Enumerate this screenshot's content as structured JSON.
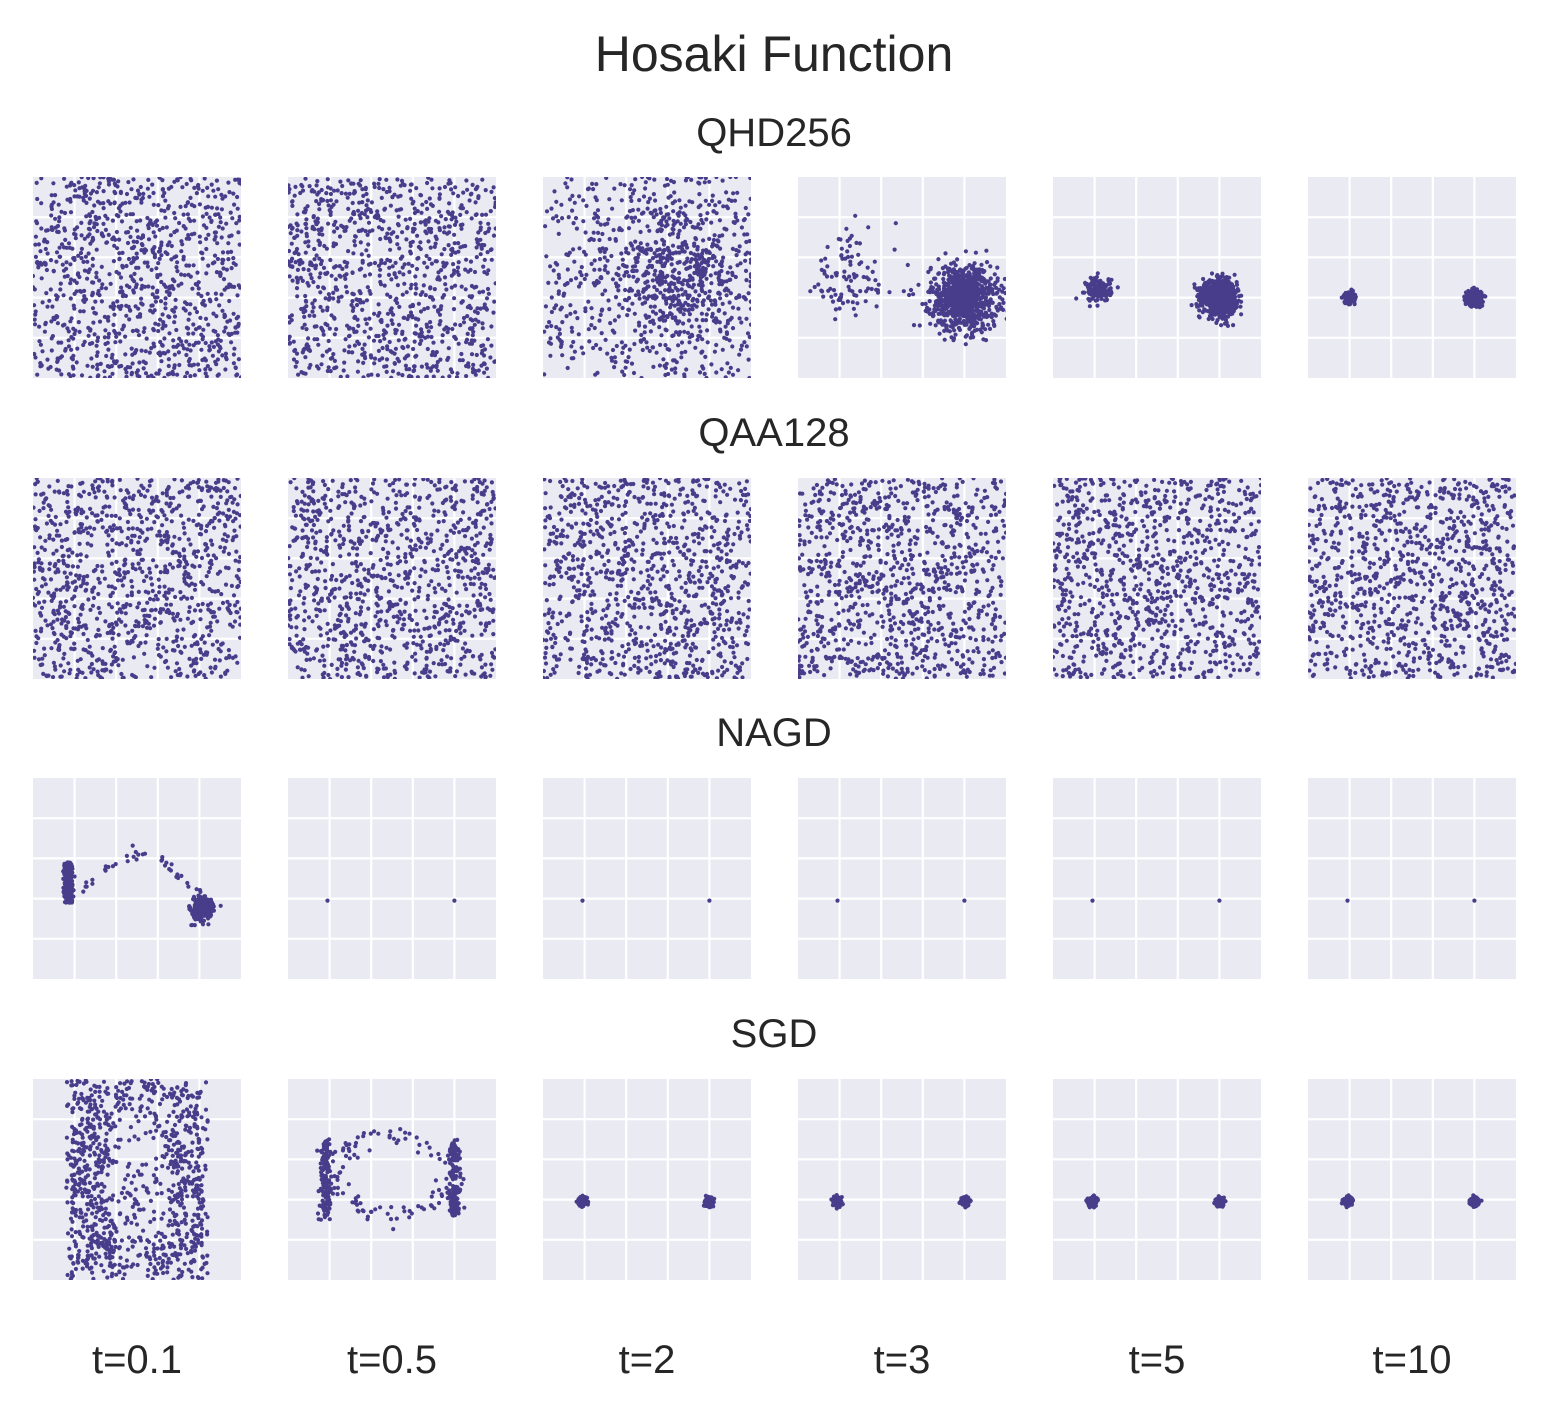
{
  "figure": {
    "title": "Hosaki Function"
  },
  "colors": {
    "points": "#483d8b",
    "panel_bg": "#eaeaf2",
    "grid": "#ffffff"
  },
  "columns": [
    "t=0.1",
    "t=0.5",
    "t=2",
    "t=3",
    "t=5",
    "t=10"
  ],
  "rows": [
    {
      "title": "QHD256"
    },
    {
      "title": "QAA128"
    },
    {
      "title": "NAGD"
    },
    {
      "title": "SGD"
    }
  ],
  "chart_data": {
    "type": "scatter",
    "title": "Hosaki Function",
    "xlim": [
      0,
      5
    ],
    "ylim": [
      0,
      5
    ],
    "grid": true,
    "row_titles": [
      "QHD256",
      "QAA128",
      "NAGD",
      "SGD"
    ],
    "col_titles": [
      "t=0.1",
      "t=0.5",
      "t=2",
      "t=3",
      "t=5",
      "t=10"
    ],
    "global_minimum": [
      4,
      2
    ],
    "local_minimum": [
      1,
      2
    ],
    "panels": {
      "QHD256": [
        {
          "t": "t=0.1",
          "distribution": "uniform",
          "n": 1000
        },
        {
          "t": "t=0.5",
          "distribution": "uniform",
          "n": 1000
        },
        {
          "t": "t=2",
          "distribution": "uniform+cluster",
          "n": 1000,
          "centers": [
            [
              3.3,
              2.6
            ]
          ],
          "spread": 1.0,
          "fraction": 0.5
        },
        {
          "t": "t=3",
          "distribution": "clusters",
          "n": 1000,
          "centers": [
            [
              4.0,
              2.0
            ],
            [
              1.2,
              2.5
            ]
          ],
          "spread": [
            0.4,
            0.6
          ],
          "weights": [
            0.9,
            0.1
          ]
        },
        {
          "t": "t=5",
          "distribution": "clusters",
          "n": 1000,
          "centers": [
            [
              4.0,
              2.0
            ],
            [
              1.1,
              2.2
            ]
          ],
          "spread": [
            0.2,
            0.15
          ],
          "weights": [
            0.85,
            0.15
          ]
        },
        {
          "t": "t=10",
          "distribution": "clusters",
          "n": 1000,
          "centers": [
            [
              4.0,
              2.0
            ],
            [
              1.0,
              2.0
            ]
          ],
          "spread": [
            0.08,
            0.06
          ],
          "weights": [
            0.7,
            0.3
          ]
        }
      ],
      "QAA128": [
        {
          "t": "t=0.1",
          "distribution": "uniform",
          "n": 1000
        },
        {
          "t": "t=0.5",
          "distribution": "uniform",
          "n": 1000
        },
        {
          "t": "t=2",
          "distribution": "uniform",
          "n": 1000
        },
        {
          "t": "t=3",
          "distribution": "uniform",
          "n": 1000
        },
        {
          "t": "t=5",
          "distribution": "uniform",
          "n": 1000
        },
        {
          "t": "t=10",
          "distribution": "uniform",
          "n": 1000
        }
      ],
      "NAGD": [
        {
          "t": "t=0.1",
          "distribution": "trajectories",
          "n": 1000
        },
        {
          "t": "t=0.5",
          "distribution": "points",
          "points": [
            [
              0.95,
              1.95
            ],
            [
              4.0,
              1.95
            ]
          ]
        },
        {
          "t": "t=2",
          "distribution": "points",
          "points": [
            [
              0.95,
              1.95
            ],
            [
              4.0,
              1.95
            ]
          ]
        },
        {
          "t": "t=3",
          "distribution": "points",
          "points": [
            [
              0.95,
              1.95
            ],
            [
              4.0,
              1.95
            ]
          ]
        },
        {
          "t": "t=5",
          "distribution": "points",
          "points": [
            [
              0.95,
              1.95
            ],
            [
              4.0,
              1.95
            ]
          ]
        },
        {
          "t": "t=10",
          "distribution": "points",
          "points": [
            [
              0.95,
              1.95
            ],
            [
              4.0,
              1.95
            ]
          ]
        }
      ],
      "SGD": [
        {
          "t": "t=0.1",
          "distribution": "funnel",
          "n": 1000
        },
        {
          "t": "t=0.5",
          "distribution": "ring",
          "n": 400
        },
        {
          "t": "t=2",
          "distribution": "clusters",
          "n": 400,
          "centers": [
            [
              0.95,
              1.95
            ],
            [
              4.0,
              1.95
            ]
          ],
          "spread": [
            0.05,
            0.05
          ],
          "weights": [
            0.5,
            0.5
          ]
        },
        {
          "t": "t=3",
          "distribution": "clusters",
          "n": 400,
          "centers": [
            [
              0.95,
              1.95
            ],
            [
              4.0,
              1.95
            ]
          ],
          "spread": [
            0.05,
            0.05
          ],
          "weights": [
            0.5,
            0.5
          ]
        },
        {
          "t": "t=5",
          "distribution": "clusters",
          "n": 400,
          "centers": [
            [
              0.95,
              1.95
            ],
            [
              4.0,
              1.95
            ]
          ],
          "spread": [
            0.05,
            0.05
          ],
          "weights": [
            0.5,
            0.5
          ]
        },
        {
          "t": "t=10",
          "distribution": "clusters",
          "n": 400,
          "centers": [
            [
              0.95,
              1.95
            ],
            [
              4.0,
              1.95
            ]
          ],
          "spread": [
            0.05,
            0.05
          ],
          "weights": [
            0.5,
            0.5
          ]
        }
      ]
    }
  }
}
